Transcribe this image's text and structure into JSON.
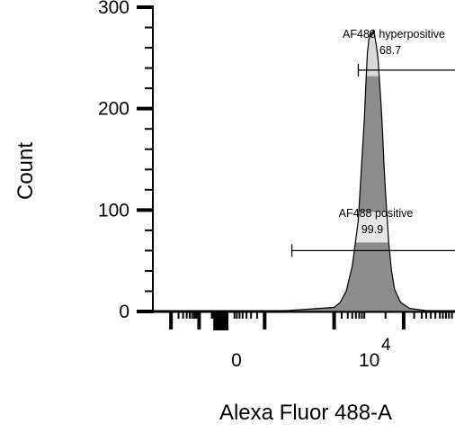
{
  "chart_data": {
    "type": "area",
    "xlabel": "Alexa Fluor 488-A",
    "ylabel": "Count",
    "ylim": [
      0,
      300
    ],
    "yticks": [
      0,
      100,
      200,
      300
    ],
    "x_scale": "biexponential (logicle)",
    "xticks": [
      {
        "value": 0,
        "label": "0"
      },
      {
        "value": 10000,
        "label": "10",
        "sup": "4"
      }
    ],
    "histogram": {
      "name": "",
      "x_position_frac": [
        0.0,
        0.35,
        0.45,
        0.6,
        0.62,
        0.64,
        0.66,
        0.68,
        0.69,
        0.7,
        0.705,
        0.71,
        0.715,
        0.72,
        0.725,
        0.73,
        0.735,
        0.74,
        0.745,
        0.75,
        0.755,
        0.76,
        0.765,
        0.77,
        0.78,
        0.79,
        0.8,
        0.82,
        0.85,
        0.9,
        1.0
      ],
      "counts": [
        0,
        0,
        1,
        4,
        9,
        20,
        45,
        90,
        140,
        190,
        225,
        255,
        268,
        275,
        272,
        278,
        270,
        262,
        250,
        228,
        205,
        178,
        145,
        118,
        70,
        40,
        22,
        9,
        3,
        1,
        0
      ]
    },
    "gates": [
      {
        "name": "AF488 positive",
        "value": "99.9",
        "y_level": 60
      },
      {
        "name": "AF488 hyperpositive",
        "value": "68.7",
        "y_level": 238
      }
    ],
    "fill_color": "#8c8c8c",
    "highlight_color": "#d9d9d9",
    "grid": false
  }
}
